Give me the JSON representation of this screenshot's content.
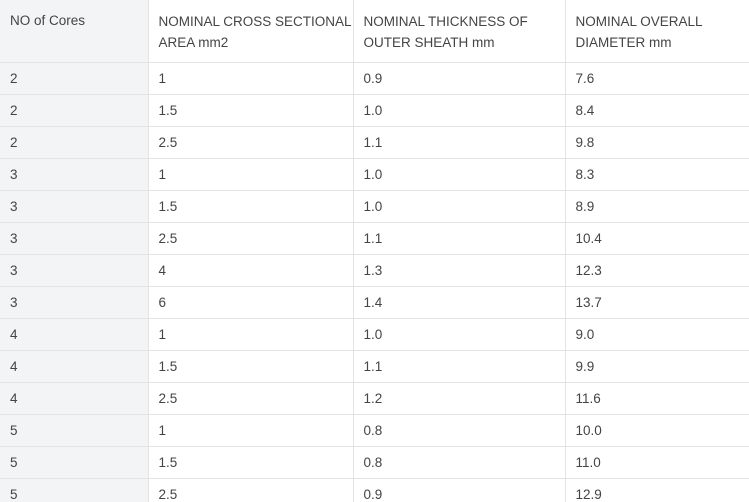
{
  "table": {
    "headers": [
      "NO of Cores",
      "NOMINAL CROSS SECTIONAL AREA mm2",
      "NOMINAL THICKNESS OF OUTER SHEATH mm",
      "NOMINAL OVERALL DIAMETER mm"
    ],
    "rows": [
      [
        "2",
        "1",
        "0.9",
        "7.6"
      ],
      [
        "2",
        "1.5",
        "1.0",
        "8.4"
      ],
      [
        "2",
        "2.5",
        "1.1",
        "9.8"
      ],
      [
        "3",
        "1",
        "1.0",
        "8.3"
      ],
      [
        "3",
        "1.5",
        "1.0",
        "8.9"
      ],
      [
        "3",
        "2.5",
        "1.1",
        "10.4"
      ],
      [
        "3",
        "4",
        "1.3",
        "12.3"
      ],
      [
        "3",
        "6",
        "1.4",
        "13.7"
      ],
      [
        "4",
        "1",
        "1.0",
        "9.0"
      ],
      [
        "4",
        "1.5",
        "1.1",
        "9.9"
      ],
      [
        "4",
        "2.5",
        "1.2",
        "11.6"
      ],
      [
        "5",
        "1",
        "0.8",
        "10.0"
      ],
      [
        "5",
        "1.5",
        "0.8",
        "11.0"
      ],
      [
        "5",
        "2.5",
        "0.9",
        "12.9"
      ]
    ]
  }
}
